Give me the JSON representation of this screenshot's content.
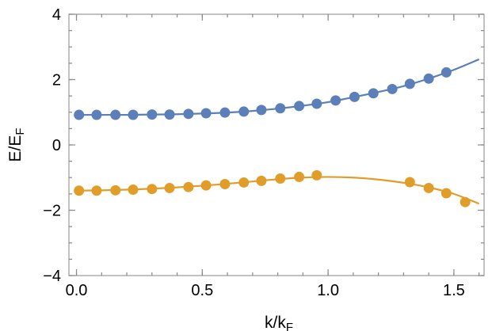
{
  "chart_data": {
    "type": "scatter",
    "xlabel": {
      "main": "k/k",
      "sub": "F"
    },
    "ylabel": {
      "main": "E/E",
      "sub": "F"
    },
    "xlim": [
      -0.03,
      1.62
    ],
    "ylim": [
      -4,
      4
    ],
    "x_ticks": [
      {
        "value": 0.0,
        "label": "0.0"
      },
      {
        "value": 0.5,
        "label": "0.5"
      },
      {
        "value": 1.0,
        "label": "1.0"
      },
      {
        "value": 1.5,
        "label": "1.5"
      }
    ],
    "y_ticks": [
      {
        "value": -4,
        "label": "−4"
      },
      {
        "value": -2,
        "label": "−2"
      },
      {
        "value": 0,
        "label": "0"
      },
      {
        "value": 2,
        "label": "2"
      },
      {
        "value": 4,
        "label": "4"
      }
    ],
    "x_minor_step": 0.1,
    "y_minor_step": 0.5,
    "grid": false,
    "legend": "none",
    "series": [
      {
        "color": "#5b7fb8",
        "points": [
          [
            0.01,
            0.92
          ],
          [
            0.08,
            0.92
          ],
          [
            0.155,
            0.92
          ],
          [
            0.225,
            0.92
          ],
          [
            0.3,
            0.93
          ],
          [
            0.37,
            0.93
          ],
          [
            0.445,
            0.95
          ],
          [
            0.515,
            0.97
          ],
          [
            0.59,
            0.99
          ],
          [
            0.665,
            1.02
          ],
          [
            0.735,
            1.07
          ],
          [
            0.81,
            1.12
          ],
          [
            0.885,
            1.19
          ],
          [
            0.955,
            1.26
          ],
          [
            1.03,
            1.36
          ],
          [
            1.105,
            1.47
          ],
          [
            1.18,
            1.58
          ],
          [
            1.255,
            1.71
          ],
          [
            1.325,
            1.87
          ],
          [
            1.4,
            2.03
          ],
          [
            1.47,
            2.22
          ]
        ],
        "curve": [
          [
            0.0,
            0.92
          ],
          [
            0.1,
            0.92
          ],
          [
            0.2,
            0.92
          ],
          [
            0.3,
            0.93
          ],
          [
            0.4,
            0.94
          ],
          [
            0.5,
            0.96
          ],
          [
            0.6,
            0.99
          ],
          [
            0.7,
            1.04
          ],
          [
            0.8,
            1.11
          ],
          [
            0.9,
            1.2
          ],
          [
            1.0,
            1.31
          ],
          [
            1.1,
            1.46
          ],
          [
            1.2,
            1.62
          ],
          [
            1.3,
            1.8
          ],
          [
            1.4,
            2.03
          ],
          [
            1.5,
            2.3
          ],
          [
            1.6,
            2.62
          ]
        ]
      },
      {
        "color": "#e19d2a",
        "points": [
          [
            0.01,
            -1.4
          ],
          [
            0.08,
            -1.4
          ],
          [
            0.155,
            -1.39
          ],
          [
            0.225,
            -1.37
          ],
          [
            0.3,
            -1.35
          ],
          [
            0.37,
            -1.32
          ],
          [
            0.445,
            -1.29
          ],
          [
            0.515,
            -1.24
          ],
          [
            0.59,
            -1.2
          ],
          [
            0.665,
            -1.15
          ],
          [
            0.735,
            -1.1
          ],
          [
            0.81,
            -1.03
          ],
          [
            0.885,
            -0.98
          ],
          [
            0.955,
            -0.93
          ],
          [
            1.325,
            -1.14
          ],
          [
            1.4,
            -1.32
          ],
          [
            1.47,
            -1.48
          ],
          [
            1.545,
            -1.75
          ]
        ],
        "curve": [
          [
            0.0,
            -1.4
          ],
          [
            0.1,
            -1.39
          ],
          [
            0.2,
            -1.37
          ],
          [
            0.3,
            -1.34
          ],
          [
            0.4,
            -1.3
          ],
          [
            0.5,
            -1.25
          ],
          [
            0.6,
            -1.19
          ],
          [
            0.7,
            -1.12
          ],
          [
            0.8,
            -1.05
          ],
          [
            0.9,
            -1.0
          ],
          [
            1.0,
            -0.98
          ],
          [
            1.1,
            -1.0
          ],
          [
            1.2,
            -1.06
          ],
          [
            1.3,
            -1.16
          ],
          [
            1.4,
            -1.3
          ],
          [
            1.5,
            -1.5
          ],
          [
            1.6,
            -1.8
          ]
        ]
      }
    ]
  }
}
